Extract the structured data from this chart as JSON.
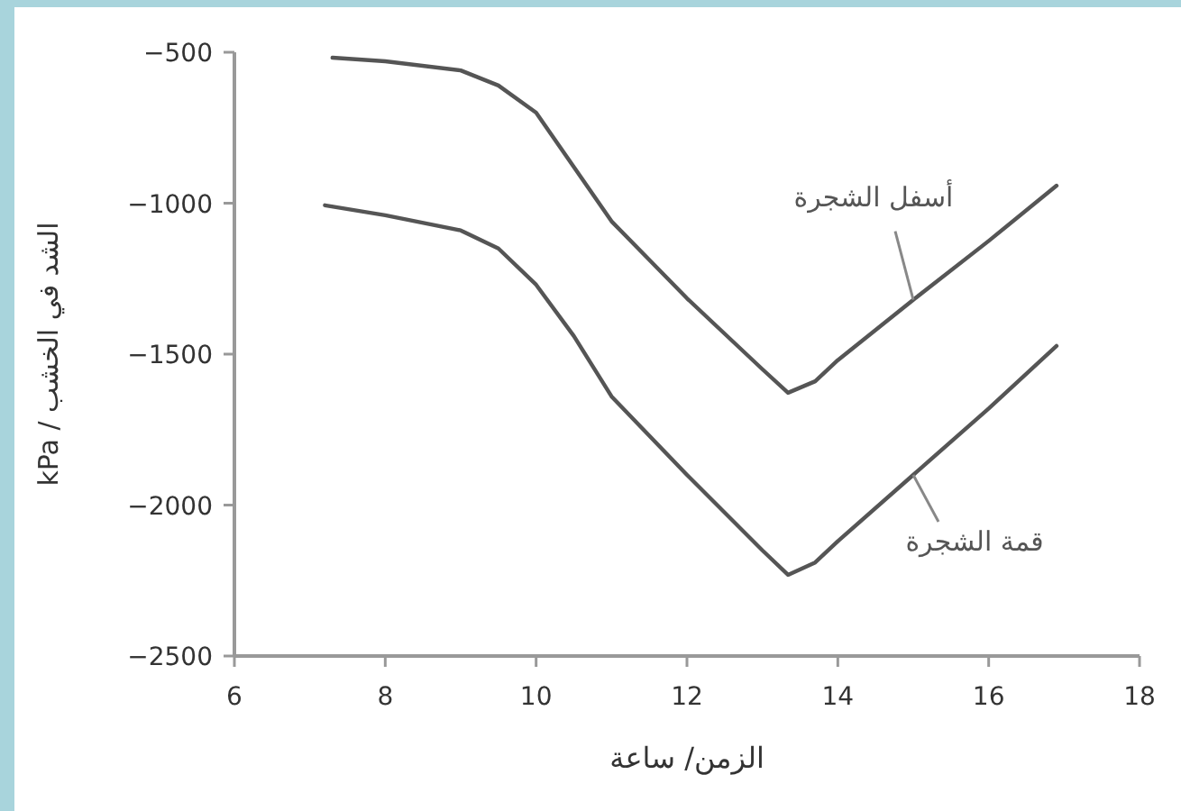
{
  "chart_data": {
    "type": "line",
    "xlabel": "الزمن/ ساعة",
    "ylabel": "الشد في الخشب / kPa",
    "xlim": [
      6,
      18
    ],
    "xticks": [
      6,
      8,
      10,
      12,
      14,
      16,
      18
    ],
    "ylim": [
      -2500,
      -500
    ],
    "yticks": [
      -2500,
      -2000,
      -1500,
      -1000,
      -500
    ],
    "grid": false,
    "marker": "none",
    "line_style": "solid",
    "series": [
      {
        "name": "أسفل الشجرة",
        "color": "#555555",
        "x": [
          7.3,
          8.0,
          9.0,
          9.5,
          10.0,
          10.5,
          11.0,
          12.0,
          13.0,
          13.34,
          13.7,
          14.0,
          15.0,
          16.0,
          16.9
        ],
        "values": [
          -518,
          -530,
          -560,
          -610,
          -700,
          -880,
          -1060,
          -1315,
          -1550,
          -1628,
          -1590,
          -1520,
          -1320,
          -1125,
          -942
        ]
      },
      {
        "name": "قمة الشجرة",
        "color": "#555555",
        "x": [
          7.2,
          8.0,
          9.0,
          9.5,
          10.0,
          10.5,
          11.0,
          12.0,
          13.0,
          13.34,
          13.7,
          14.0,
          15.0,
          16.0,
          16.9
        ],
        "values": [
          -1007,
          -1040,
          -1090,
          -1150,
          -1270,
          -1440,
          -1640,
          -1900,
          -2150,
          -2231,
          -2190,
          -2120,
          -1900,
          -1680,
          -1473
        ]
      }
    ]
  }
}
